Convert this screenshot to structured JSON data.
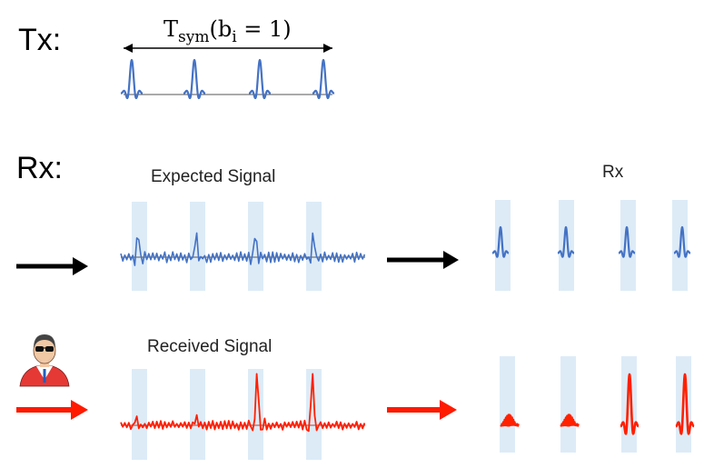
{
  "labels": {
    "tx": "Tx:",
    "rx": "Rx:",
    "expected": "Expected Signal",
    "rx_title": "Rx",
    "received": "Received Signal"
  },
  "symbol_period": {
    "T": "T",
    "sym": "sym",
    "open": "(b",
    "i": "i",
    "eq": " = 1)"
  },
  "colors": {
    "blue": "#4472C4",
    "red": "#FF2000",
    "window": "#DDEBF7",
    "black": "#000000"
  },
  "icons": {
    "attacker": "attacker-avatar-icon"
  }
}
